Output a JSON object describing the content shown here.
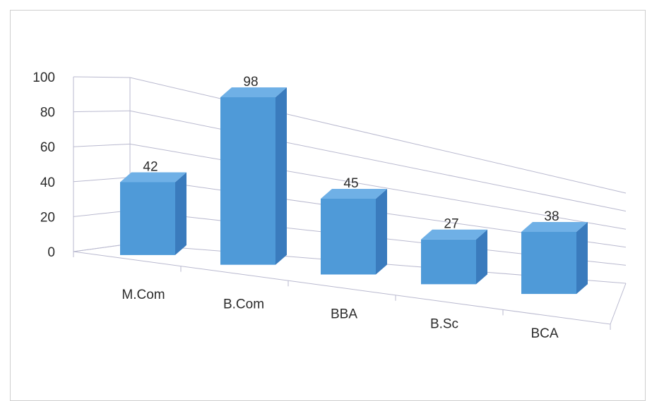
{
  "chart_data": {
    "type": "bar",
    "categories": [
      "M.Com",
      "B.Com",
      "BBA",
      "B.Sc",
      "BCA"
    ],
    "values": [
      42,
      98,
      45,
      27,
      38
    ],
    "ylim": [
      0,
      100
    ],
    "yticks": [
      "0",
      "20",
      "40",
      "60",
      "80",
      "100"
    ],
    "grid": true,
    "style": "3d-column",
    "bar_color": "#4f9ad8"
  }
}
